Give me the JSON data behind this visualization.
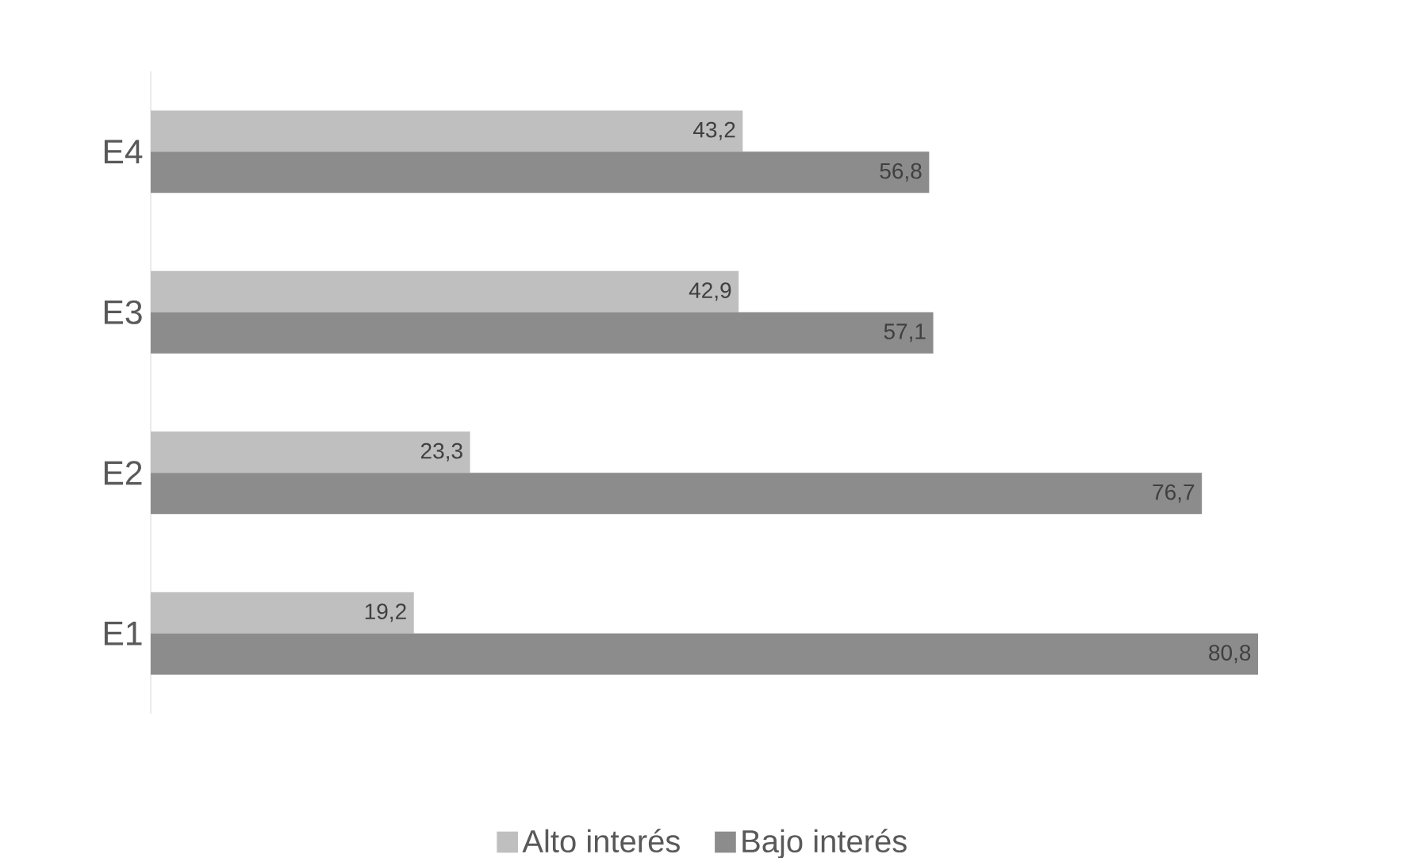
{
  "chart_data": {
    "type": "bar",
    "orientation": "horizontal",
    "categories": [
      "E4",
      "E3",
      "E2",
      "E1"
    ],
    "series": [
      {
        "name": "Alto interés",
        "color": "#bfbfbf",
        "values": [
          43.2,
          42.9,
          23.3,
          19.2
        ],
        "value_labels": [
          "43,2",
          "42,9",
          "23,3",
          "19,2"
        ]
      },
      {
        "name": "Bajo interés",
        "color": "#8c8c8c",
        "values": [
          56.8,
          57.1,
          76.7,
          80.8
        ],
        "value_labels": [
          "56,8",
          "57,1",
          "76,7",
          "80,8"
        ]
      }
    ],
    "legend": "bottom"
  }
}
